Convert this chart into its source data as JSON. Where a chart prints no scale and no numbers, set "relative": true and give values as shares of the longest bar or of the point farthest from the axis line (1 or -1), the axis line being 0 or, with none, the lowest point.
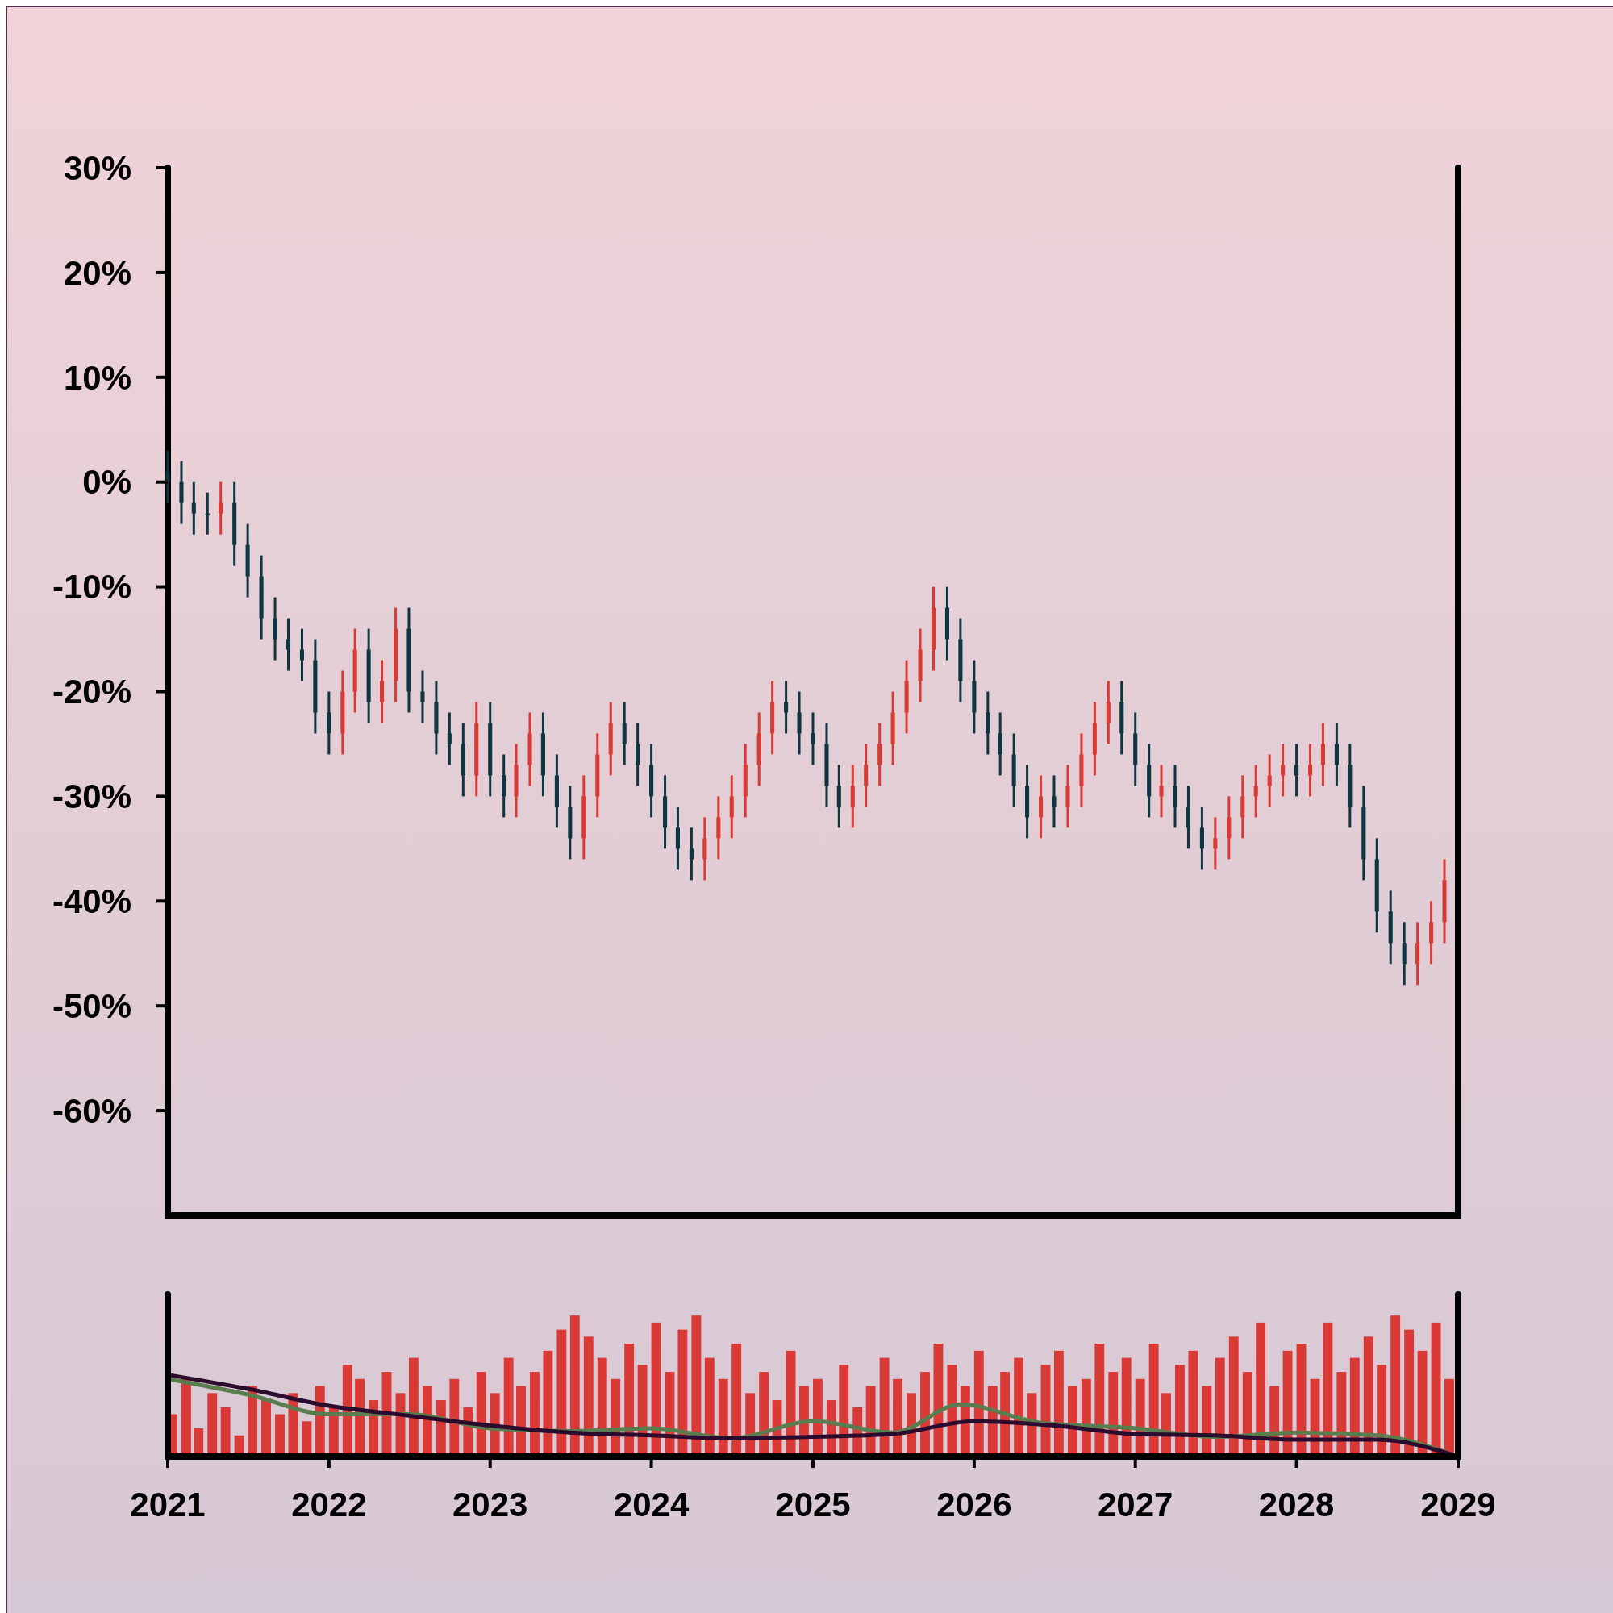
{
  "chart_data": [
    {
      "type": "candlestick",
      "xlim": [
        "2021",
        "2029"
      ],
      "ylim": [
        -70,
        30
      ],
      "yticks": [
        {
          "value": 30,
          "label": "30%"
        },
        {
          "value": 20,
          "label": "20%"
        },
        {
          "value": 10,
          "label": "10%"
        },
        {
          "value": 0,
          "label": "0%"
        },
        {
          "value": -10,
          "label": "-10%"
        },
        {
          "value": -20,
          "label": "-20%"
        },
        {
          "value": -30,
          "label": "-30%"
        },
        {
          "value": -40,
          "label": "-40%"
        },
        {
          "value": -50,
          "label": "-50%"
        },
        {
          "value": -60,
          "label": "-60%"
        }
      ],
      "tick_labels": "y",
      "grid": false,
      "x": [
        "2021-01",
        "2021-02",
        "2021-03",
        "2021-04",
        "2021-05",
        "2021-06",
        "2021-07",
        "2021-08",
        "2021-09",
        "2021-10",
        "2021-11",
        "2021-12",
        "2022-01",
        "2022-02",
        "2022-03",
        "2022-04",
        "2022-05",
        "2022-06",
        "2022-07",
        "2022-08",
        "2022-09",
        "2022-10",
        "2022-11",
        "2022-12",
        "2023-01",
        "2023-02",
        "2023-03",
        "2023-04",
        "2023-05",
        "2023-06",
        "2023-07",
        "2023-08",
        "2023-09",
        "2023-10",
        "2023-11",
        "2023-12",
        "2024-01",
        "2024-02",
        "2024-03",
        "2024-04",
        "2024-05",
        "2024-06",
        "2024-07",
        "2024-08",
        "2024-09",
        "2024-10",
        "2024-11",
        "2024-12",
        "2025-01",
        "2025-02",
        "2025-03",
        "2025-04",
        "2025-05",
        "2025-06",
        "2025-07",
        "2025-08",
        "2025-09",
        "2025-10",
        "2025-11",
        "2025-12",
        "2026-01",
        "2026-02",
        "2026-03",
        "2026-04",
        "2026-05",
        "2026-06",
        "2026-07",
        "2026-08",
        "2026-09",
        "2026-10",
        "2026-11",
        "2026-12",
        "2027-01",
        "2027-02",
        "2027-03",
        "2027-04",
        "2027-05",
        "2027-06",
        "2027-07",
        "2027-08",
        "2027-09",
        "2027-10",
        "2027-11",
        "2027-12",
        "2028-01",
        "2028-02",
        "2028-03",
        "2028-04",
        "2028-05",
        "2028-06",
        "2028-07",
        "2028-08",
        "2028-09",
        "2028-10",
        "2028-11",
        "2028-12"
      ],
      "ohlc": [
        [
          1,
          3,
          -2,
          0
        ],
        [
          0,
          2,
          -4,
          -2
        ],
        [
          -2,
          0,
          -5,
          -3
        ],
        [
          -3,
          -1,
          -5,
          -3
        ],
        [
          -3,
          0,
          -5,
          -2
        ],
        [
          -2,
          0,
          -8,
          -6
        ],
        [
          -6,
          -4,
          -11,
          -9
        ],
        [
          -9,
          -7,
          -15,
          -13
        ],
        [
          -13,
          -11,
          -17,
          -15
        ],
        [
          -15,
          -13,
          -18,
          -16
        ],
        [
          -16,
          -14,
          -19,
          -17
        ],
        [
          -17,
          -15,
          -24,
          -22
        ],
        [
          -22,
          -20,
          -26,
          -24
        ],
        [
          -24,
          -18,
          -26,
          -20
        ],
        [
          -20,
          -14,
          -22,
          -16
        ],
        [
          -16,
          -14,
          -23,
          -21
        ],
        [
          -21,
          -17,
          -23,
          -19
        ],
        [
          -19,
          -12,
          -21,
          -14
        ],
        [
          -14,
          -12,
          -22,
          -20
        ],
        [
          -20,
          -18,
          -23,
          -21
        ],
        [
          -21,
          -19,
          -26,
          -24
        ],
        [
          -24,
          -22,
          -27,
          -25
        ],
        [
          -25,
          -23,
          -30,
          -28
        ],
        [
          -28,
          -21,
          -30,
          -23
        ],
        [
          -23,
          -21,
          -30,
          -28
        ],
        [
          -28,
          -26,
          -32,
          -30
        ],
        [
          -30,
          -25,
          -32,
          -27
        ],
        [
          -27,
          -22,
          -29,
          -24
        ],
        [
          -24,
          -22,
          -30,
          -28
        ],
        [
          -28,
          -26,
          -33,
          -31
        ],
        [
          -31,
          -29,
          -36,
          -34
        ],
        [
          -34,
          -28,
          -36,
          -30
        ],
        [
          -30,
          -24,
          -32,
          -26
        ],
        [
          -26,
          -21,
          -28,
          -23
        ],
        [
          -23,
          -21,
          -27,
          -25
        ],
        [
          -25,
          -23,
          -29,
          -27
        ],
        [
          -27,
          -25,
          -32,
          -30
        ],
        [
          -30,
          -28,
          -35,
          -33
        ],
        [
          -33,
          -31,
          -37,
          -35
        ],
        [
          -35,
          -33,
          -38,
          -36
        ],
        [
          -36,
          -32,
          -38,
          -34
        ],
        [
          -34,
          -30,
          -36,
          -32
        ],
        [
          -32,
          -28,
          -34,
          -30
        ],
        [
          -30,
          -25,
          -32,
          -27
        ],
        [
          -27,
          -22,
          -29,
          -24
        ],
        [
          -24,
          -19,
          -26,
          -21
        ],
        [
          -21,
          -19,
          -24,
          -22
        ],
        [
          -22,
          -20,
          -26,
          -24
        ],
        [
          -24,
          -22,
          -27,
          -25
        ],
        [
          -25,
          -23,
          -31,
          -29
        ],
        [
          -29,
          -27,
          -33,
          -31
        ],
        [
          -31,
          -27,
          -33,
          -29
        ],
        [
          -29,
          -25,
          -31,
          -27
        ],
        [
          -27,
          -23,
          -29,
          -25
        ],
        [
          -25,
          -20,
          -27,
          -22
        ],
        [
          -22,
          -17,
          -24,
          -19
        ],
        [
          -19,
          -14,
          -21,
          -16
        ],
        [
          -16,
          -10,
          -18,
          -12
        ],
        [
          -12,
          -10,
          -17,
          -15
        ],
        [
          -15,
          -13,
          -21,
          -19
        ],
        [
          -19,
          -17,
          -24,
          -22
        ],
        [
          -22,
          -20,
          -26,
          -24
        ],
        [
          -24,
          -22,
          -28,
          -26
        ],
        [
          -26,
          -24,
          -31,
          -29
        ],
        [
          -29,
          -27,
          -34,
          -32
        ],
        [
          -32,
          -28,
          -34,
          -30
        ],
        [
          -30,
          -28,
          -33,
          -31
        ],
        [
          -31,
          -27,
          -33,
          -29
        ],
        [
          -29,
          -24,
          -31,
          -26
        ],
        [
          -26,
          -21,
          -28,
          -23
        ],
        [
          -23,
          -19,
          -25,
          -21
        ],
        [
          -21,
          -19,
          -26,
          -24
        ],
        [
          -24,
          -22,
          -29,
          -27
        ],
        [
          -27,
          -25,
          -32,
          -30
        ],
        [
          -30,
          -27,
          -32,
          -29
        ],
        [
          -29,
          -27,
          -33,
          -31
        ],
        [
          -31,
          -29,
          -35,
          -33
        ],
        [
          -33,
          -31,
          -37,
          -35
        ],
        [
          -35,
          -32,
          -37,
          -34
        ],
        [
          -34,
          -30,
          -36,
          -32
        ],
        [
          -32,
          -28,
          -34,
          -30
        ],
        [
          -30,
          -27,
          -32,
          -29
        ],
        [
          -29,
          -26,
          -31,
          -28
        ],
        [
          -28,
          -25,
          -30,
          -27
        ],
        [
          -27,
          -25,
          -30,
          -28
        ],
        [
          -28,
          -25,
          -30,
          -27
        ],
        [
          -27,
          -23,
          -29,
          -25
        ],
        [
          -25,
          -23,
          -29,
          -27
        ],
        [
          -27,
          -25,
          -33,
          -31
        ],
        [
          -31,
          -29,
          -38,
          -36
        ],
        [
          -36,
          -34,
          -43,
          -41
        ],
        [
          -41,
          -39,
          -46,
          -44
        ],
        [
          -44,
          -42,
          -48,
          -46
        ],
        [
          -46,
          -42,
          -48,
          -44
        ],
        [
          -44,
          -40,
          -46,
          -42
        ],
        [
          -42,
          -36,
          -44,
          -38
        ]
      ],
      "colors": [
        "#0f3540",
        "#0f3540",
        "#0f3540",
        "#0f3540",
        "#d93a35",
        "#0f3540",
        "#0f3540",
        "#0f3540",
        "#0f3540",
        "#0f3540",
        "#0f3540",
        "#0f3540",
        "#0f3540",
        "#d93a35",
        "#d93a35",
        "#0f3540",
        "#d93a35",
        "#d93a35",
        "#0f3540",
        "#0f3540",
        "#0f3540",
        "#0f3540",
        "#0f3540",
        "#d93a35",
        "#0f3540",
        "#0f3540",
        "#d93a35",
        "#d93a35",
        "#0f3540",
        "#0f3540",
        "#0f3540",
        "#d93a35",
        "#d93a35",
        "#d93a35",
        "#0f3540",
        "#0f3540",
        "#0f3540",
        "#0f3540",
        "#0f3540",
        "#0f3540",
        "#d93a35",
        "#d93a35",
        "#d93a35",
        "#d93a35",
        "#d93a35",
        "#d93a35",
        "#0f3540",
        "#0f3540",
        "#0f3540",
        "#0f3540",
        "#0f3540",
        "#d93a35",
        "#d93a35",
        "#d93a35",
        "#d93a35",
        "#d93a35",
        "#d93a35",
        "#d93a35",
        "#0f3540",
        "#0f3540",
        "#0f3540",
        "#0f3540",
        "#0f3540",
        "#0f3540",
        "#0f3540",
        "#d93a35",
        "#0f3540",
        "#d93a35",
        "#d93a35",
        "#d93a35",
        "#d93a35",
        "#0f3540",
        "#0f3540",
        "#0f3540",
        "#d93a35",
        "#0f3540",
        "#0f3540",
        "#0f3540",
        "#d93a35",
        "#d93a35",
        "#d93a35",
        "#d93a35",
        "#d93a35",
        "#d93a35",
        "#0f3540",
        "#d93a35",
        "#d93a35",
        "#0f3540",
        "#0f3540",
        "#0f3540",
        "#0f3540",
        "#0f3540",
        "#0f3540",
        "#d93a35",
        "#d93a35",
        "#d93a35"
      ]
    },
    {
      "type": "bar",
      "relative": true,
      "tick_labels": "x",
      "xlim": [
        "2021",
        "2029"
      ],
      "xticks": [
        "2021",
        "2022",
        "2023",
        "2024",
        "2025",
        "2026",
        "2027",
        "2028",
        "2029"
      ],
      "x": [
        "2021-01",
        "2021-02",
        "2021-03",
        "2021-04",
        "2021-05",
        "2021-06",
        "2021-07",
        "2021-08",
        "2021-09",
        "2021-10",
        "2021-11",
        "2021-12",
        "2022-01",
        "2022-02",
        "2022-03",
        "2022-04",
        "2022-05",
        "2022-06",
        "2022-07",
        "2022-08",
        "2022-09",
        "2022-10",
        "2022-11",
        "2022-12",
        "2023-01",
        "2023-02",
        "2023-03",
        "2023-04",
        "2023-05",
        "2023-06",
        "2023-07",
        "2023-08",
        "2023-09",
        "2023-10",
        "2023-11",
        "2023-12",
        "2024-01",
        "2024-02",
        "2024-03",
        "2024-04",
        "2024-05",
        "2024-06",
        "2024-07",
        "2024-08",
        "2024-09",
        "2024-10",
        "2024-11",
        "2024-12",
        "2025-01",
        "2025-02",
        "2025-03",
        "2025-04",
        "2025-05",
        "2025-06",
        "2025-07",
        "2025-08",
        "2025-09",
        "2025-10",
        "2025-11",
        "2025-12",
        "2026-01",
        "2026-02",
        "2026-03",
        "2026-04",
        "2026-05",
        "2026-06",
        "2026-07",
        "2026-08",
        "2026-09",
        "2026-10",
        "2026-11",
        "2026-12",
        "2027-01",
        "2027-02",
        "2027-03",
        "2027-04",
        "2027-05",
        "2027-06",
        "2027-07",
        "2027-08",
        "2027-09",
        "2027-10",
        "2027-11",
        "2027-12",
        "2028-01",
        "2028-02",
        "2028-03",
        "2028-04",
        "2028-05",
        "2028-06",
        "2028-07",
        "2028-08",
        "2028-09",
        "2028-10",
        "2028-11",
        "2028-12"
      ],
      "series": [
        {
          "type": "bar",
          "color": "#d93a35",
          "values": [
            0.3,
            0.55,
            0.2,
            0.45,
            0.35,
            0.15,
            0.5,
            0.4,
            0.3,
            0.45,
            0.25,
            0.5,
            0.35,
            0.65,
            0.55,
            0.4,
            0.6,
            0.45,
            0.7,
            0.5,
            0.4,
            0.55,
            0.35,
            0.6,
            0.45,
            0.7,
            0.5,
            0.6,
            0.75,
            0.9,
            1,
            0.85,
            0.7,
            0.55,
            0.8,
            0.65,
            0.95,
            0.6,
            0.9,
            1,
            0.7,
            0.55,
            0.8,
            0.45,
            0.6,
            0.4,
            0.75,
            0.5,
            0.55,
            0.4,
            0.65,
            0.35,
            0.5,
            0.7,
            0.55,
            0.45,
            0.6,
            0.8,
            0.65,
            0.5,
            0.75,
            0.5,
            0.6,
            0.7,
            0.45,
            0.65,
            0.75,
            0.5,
            0.55,
            0.8,
            0.6,
            0.7,
            0.55,
            0.8,
            0.45,
            0.65,
            0.75,
            0.5,
            0.7,
            0.85,
            0.6,
            0.95,
            0.5,
            0.75,
            0.8,
            0.55,
            0.95,
            0.6,
            0.7,
            0.85,
            0.65,
            1,
            0.9,
            0.75,
            0.95,
            0.55
          ]
        },
        {
          "type": "line",
          "color": "#5a7d4f",
          "x": [
            "2021-01",
            "2021-07",
            "2022-01",
            "2022-07",
            "2023-01",
            "2023-07",
            "2024-01",
            "2024-07",
            "2025-01",
            "2025-07",
            "2025-12",
            "2026-06",
            "2027-01",
            "2027-07",
            "2028-01",
            "2028-07",
            "2029-01"
          ],
          "values": [
            0.55,
            0.44,
            0.3,
            0.3,
            0.2,
            0.18,
            0.2,
            0.13,
            0.25,
            0.17,
            0.37,
            0.24,
            0.2,
            0.14,
            0.17,
            0.15,
            0
          ]
        },
        {
          "type": "line",
          "color": "#2b0b2e",
          "x": [
            "2021-01",
            "2021-07",
            "2022-01",
            "2022-07",
            "2023-01",
            "2023-07",
            "2024-01",
            "2024-07",
            "2025-01",
            "2025-07",
            "2026-01",
            "2026-07",
            "2027-01",
            "2027-07",
            "2028-01",
            "2028-07",
            "2029-01"
          ],
          "values": [
            0.58,
            0.48,
            0.36,
            0.29,
            0.22,
            0.17,
            0.15,
            0.13,
            0.14,
            0.16,
            0.25,
            0.22,
            0.16,
            0.15,
            0.12,
            0.12,
            0
          ]
        }
      ]
    }
  ]
}
